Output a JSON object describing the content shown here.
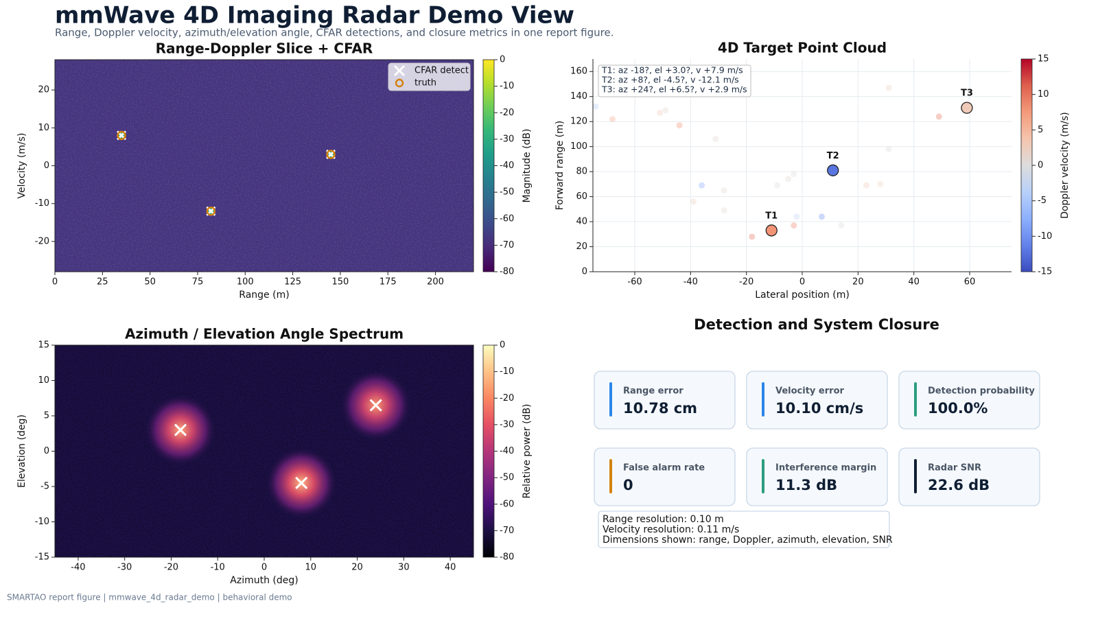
{
  "title": "mmWave 4D Imaging Radar Demo View",
  "subtitle": "Range, Doppler velocity, azimuth/elevation angle, CFAR detections, and closure metrics in one report figure.",
  "footer": "SMARTAO report figure | mmwave_4d_radar_demo | behavioral demo",
  "chart_data": [
    {
      "type": "heatmap",
      "title": "Range-Doppler Slice + CFAR",
      "x_label": "Range (m)",
      "y_label": "Velocity (m/s)",
      "xlim": [
        0,
        220
      ],
      "ylim": [
        -28,
        28
      ],
      "xticks": [
        0,
        25,
        50,
        75,
        100,
        125,
        150,
        175,
        200
      ],
      "yticks": [
        -20,
        -10,
        0,
        10,
        20
      ],
      "noise_floor": -68,
      "colormap": "viridis",
      "colorbar": {
        "label": "Magnitude (dB)",
        "lim": [
          -80,
          0
        ],
        "ticks": [
          0,
          -10,
          -20,
          -30,
          -40,
          -50,
          -60,
          -70,
          -80
        ]
      },
      "peaks": {
        "x": [
          35,
          82,
          145
        ],
        "y": [
          8,
          -12,
          3
        ],
        "values": [
          -30,
          -30,
          -30
        ]
      },
      "series": [
        {
          "name": "CFAR detect",
          "marker": "x",
          "color": "#ffffff",
          "x": [
            35,
            82,
            145
          ],
          "y": [
            8,
            -12,
            3
          ]
        },
        {
          "name": "truth",
          "marker": "o",
          "color": "#d4820f",
          "x": [
            35,
            82,
            145
          ],
          "y": [
            8,
            -12,
            3
          ]
        }
      ],
      "legend": "upper right"
    },
    {
      "type": "scatter",
      "title": "4D Target Point Cloud",
      "x_label": "Lateral position (m)",
      "y_label": "Forward range (m)",
      "xlim": [
        -75,
        75
      ],
      "ylim": [
        0,
        170
      ],
      "xticks": [
        -60,
        -40,
        -20,
        0,
        20,
        40,
        60
      ],
      "yticks": [
        0,
        20,
        40,
        60,
        80,
        100,
        120,
        140,
        160
      ],
      "grid": true,
      "colormap": "coolwarm",
      "colorbar": {
        "label": "Doppler velocity (m/s)",
        "lim": [
          -15,
          15
        ],
        "ticks": [
          -15,
          -10,
          -5,
          0,
          5,
          10,
          15
        ]
      },
      "annotation": [
        "T1: az -18?, el +3.0?, v +7.9 m/s",
        "T2: az +8?, el -4.5?, v -12.1 m/s",
        "T3: az +24?, el +6.5?, v +2.9 m/s"
      ],
      "targets": {
        "labels": [
          "T1",
          "T2",
          "T3"
        ],
        "x": [
          -11,
          11,
          59
        ],
        "y": [
          33,
          81,
          131
        ],
        "doppler": [
          7.9,
          -12.1,
          2.9
        ]
      },
      "clutter": {
        "x": [
          -74,
          -68,
          -51,
          -49,
          -44,
          -31,
          -36,
          -28,
          -39,
          -28,
          -9,
          -5,
          -3,
          -2,
          -3,
          -18,
          7,
          14,
          23,
          28,
          31,
          31,
          49
        ],
        "y": [
          132,
          122,
          127,
          129,
          117,
          106,
          69,
          65,
          56,
          49,
          69,
          74,
          78,
          44,
          37,
          28,
          44,
          37,
          69,
          70,
          98,
          147,
          124
        ],
        "doppler": [
          -4,
          6,
          3,
          1,
          8,
          1,
          -8,
          1,
          2,
          1,
          0,
          1,
          0,
          -3,
          9,
          10,
          -10,
          0,
          3,
          2,
          0,
          2,
          10
        ]
      }
    },
    {
      "type": "heatmap",
      "title": "Azimuth / Elevation Angle Spectrum",
      "x_label": "Azimuth (deg)",
      "y_label": "Elevation (deg)",
      "xlim": [
        -45,
        45
      ],
      "ylim": [
        -15,
        15
      ],
      "xticks": [
        -40,
        -30,
        -20,
        -10,
        0,
        10,
        20,
        30,
        40
      ],
      "yticks": [
        -15,
        -10,
        -5,
        0,
        5,
        10,
        15
      ],
      "noise_floor": -70,
      "colormap": "magma",
      "colorbar": {
        "label": "Relative power (dB)",
        "lim": [
          -80,
          0
        ],
        "ticks": [
          0,
          -10,
          -20,
          -30,
          -40,
          -50,
          -60,
          -70,
          -80
        ]
      },
      "peaks": {
        "x": [
          -18,
          8,
          24
        ],
        "y": [
          3,
          -4.5,
          6.5
        ],
        "values": [
          -15,
          -12,
          -17
        ]
      },
      "series": [
        {
          "marker": "x",
          "color": "#ffffff",
          "x": [
            -18,
            8,
            24
          ],
          "y": [
            3,
            -4.5,
            6.5
          ]
        }
      ]
    }
  ],
  "metrics": {
    "title": "Detection and System Closure",
    "cards": [
      {
        "label": "Range error",
        "value": "10.78 cm",
        "accent": "#2b86e8"
      },
      {
        "label": "Velocity error",
        "value": "10.10 cm/s",
        "accent": "#2b86e8"
      },
      {
        "label": "Detection probability",
        "value": "100.0%",
        "accent": "#2a9d7f"
      },
      {
        "label": "False alarm rate",
        "value": "0",
        "accent": "#d4820f"
      },
      {
        "label": "Interference margin",
        "value": "11.3 dB",
        "accent": "#2a9d7f"
      },
      {
        "label": "Radar SNR",
        "value": "22.6 dB",
        "accent": "#0f1e33"
      }
    ],
    "notes": [
      "Range resolution: 0.10 m",
      "Velocity resolution: 0.11 m/s",
      "Dimensions shown: range, Doppler, azimuth, elevation, SNR"
    ]
  }
}
